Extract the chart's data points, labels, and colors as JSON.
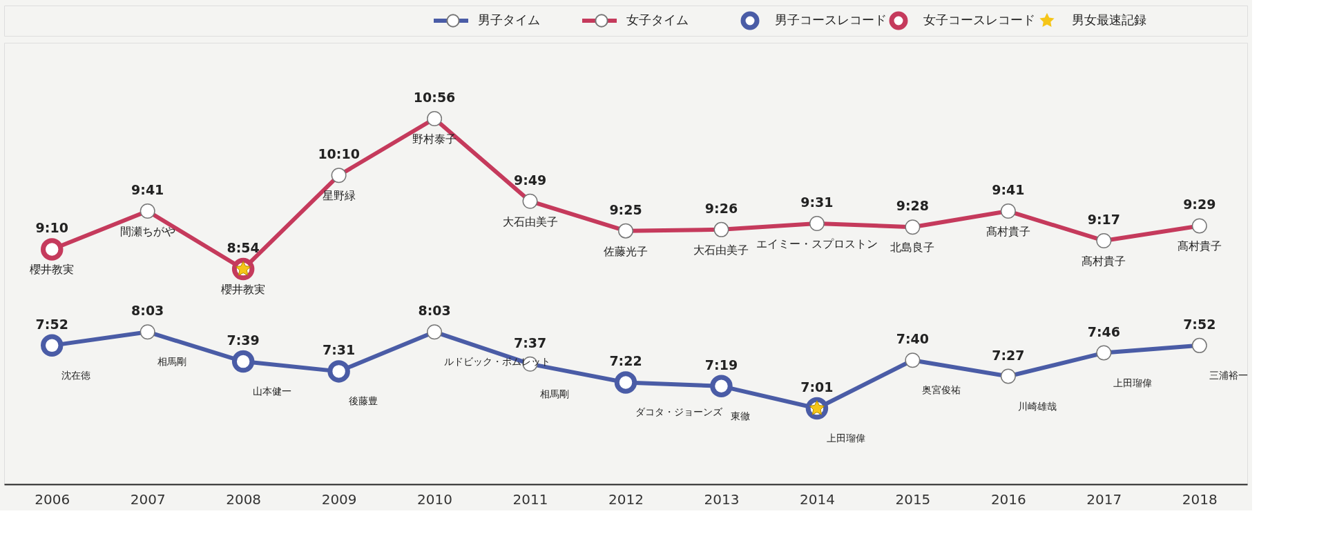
{
  "chart_data": {
    "type": "line",
    "categories": [
      "2006",
      "2007",
      "2008",
      "2009",
      "2010",
      "2011",
      "2012",
      "2013",
      "2014",
      "2015",
      "2016",
      "2017",
      "2018"
    ],
    "legend": "top right",
    "marker": "circle",
    "tick_labels": "x",
    "grid": false,
    "series": [
      {
        "name": "男子タイム",
        "color": "#4a5ca6",
        "values": [
          7.8667,
          8.05,
          7.65,
          7.5167,
          8.05,
          7.6167,
          7.3667,
          7.3167,
          7.0167,
          7.6667,
          7.45,
          7.7667,
          7.8667
        ],
        "value_labels": [
          "7:52",
          "8:03",
          "7:39",
          "7:31",
          "8:03",
          "7:37",
          "7:22",
          "7:19",
          "7:01",
          "7:40",
          "7:27",
          "7:46",
          "7:52"
        ]
      },
      {
        "name": "女子タイム",
        "color": "#c53a5c",
        "values": [
          9.1667,
          9.6833,
          8.9,
          10.1667,
          10.9333,
          9.8167,
          9.4167,
          9.4333,
          9.5167,
          9.4667,
          9.6833,
          9.2833,
          9.4833
        ],
        "value_labels": [
          "9:10",
          "9:41",
          "8:54",
          "10:10",
          "10:56",
          "9:49",
          "9:25",
          "9:26",
          "9:31",
          "9:28",
          "9:41",
          "9:17",
          "9:29"
        ]
      },
      {
        "name": "男子コースレコード",
        "type": "scatter",
        "color": "#4a5ca6",
        "values": [
          7.8667,
          null,
          7.65,
          7.5167,
          null,
          null,
          7.3667,
          7.3167,
          7.0167,
          null,
          null,
          null,
          null
        ]
      },
      {
        "name": "女子コースレコード",
        "type": "scatter",
        "color": "#c53a5c",
        "values": [
          9.1667,
          null,
          8.9,
          null,
          null,
          null,
          null,
          null,
          null,
          null,
          null,
          null,
          null
        ]
      },
      {
        "name": "男女最速記録",
        "type": "scatter",
        "marker": "star",
        "color": "#f5c518",
        "values": [
          null,
          null,
          8.9,
          null,
          null,
          null,
          null,
          null,
          7.0167,
          null,
          null,
          null,
          null
        ]
      }
    ],
    "annotations": [
      {
        "text": "櫻井教実",
        "x": "2006",
        "y": 9.1667
      },
      {
        "text": "間瀬ちがや",
        "x": "2007",
        "y": 9.6833
      },
      {
        "text": "櫻井教実",
        "x": "2008",
        "y": 8.9
      },
      {
        "text": "星野緑",
        "x": "2009",
        "y": 10.1667
      },
      {
        "text": "野村泰子",
        "x": "2010",
        "y": 10.9333
      },
      {
        "text": "大石由美子",
        "x": "2011",
        "y": 9.8167
      },
      {
        "text": "佐藤光子",
        "x": "2012",
        "y": 9.4167
      },
      {
        "text": "大石由美子",
        "x": "2013",
        "y": 9.4333
      },
      {
        "text": "エイミー・スプロストン",
        "x": "2014",
        "y": 9.5167
      },
      {
        "text": "北島良子",
        "x": "2015",
        "y": 9.4667
      },
      {
        "text": "髙村貴子",
        "x": "2016",
        "y": 9.6833
      },
      {
        "text": "髙村貴子",
        "x": "2017",
        "y": 9.2833
      },
      {
        "text": "髙村貴子",
        "x": "2018",
        "y": 9.4833
      },
      {
        "text": "沈在徳",
        "x": "2006",
        "y": 7.8667
      },
      {
        "text": "相馬剛",
        "x": "2007",
        "y": 8.05
      },
      {
        "text": "山本健一",
        "x": "2008",
        "y": 7.65
      },
      {
        "text": "後藤豊",
        "x": "2009",
        "y": 7.5167
      },
      {
        "text": "ルドビック・ポムレット",
        "x": "2010",
        "y": 8.05
      },
      {
        "text": "相馬剛",
        "x": "2011",
        "y": 7.6167
      },
      {
        "text": "ダコタ・ジョーンズ",
        "x": "2012",
        "y": 7.3667
      },
      {
        "text": "東徹",
        "x": "2013",
        "y": 7.3167
      },
      {
        "text": "上田瑠偉",
        "x": "2014",
        "y": 7.0167
      },
      {
        "text": "奥宮俊祐",
        "x": "2015",
        "y": 7.6667
      },
      {
        "text": "川崎雄哉",
        "x": "2016",
        "y": 7.45
      },
      {
        "text": "上田瑠偉",
        "x": "2017",
        "y": 7.7667
      },
      {
        "text": "三浦裕一",
        "x": "2018",
        "y": 7.8667
      }
    ]
  }
}
